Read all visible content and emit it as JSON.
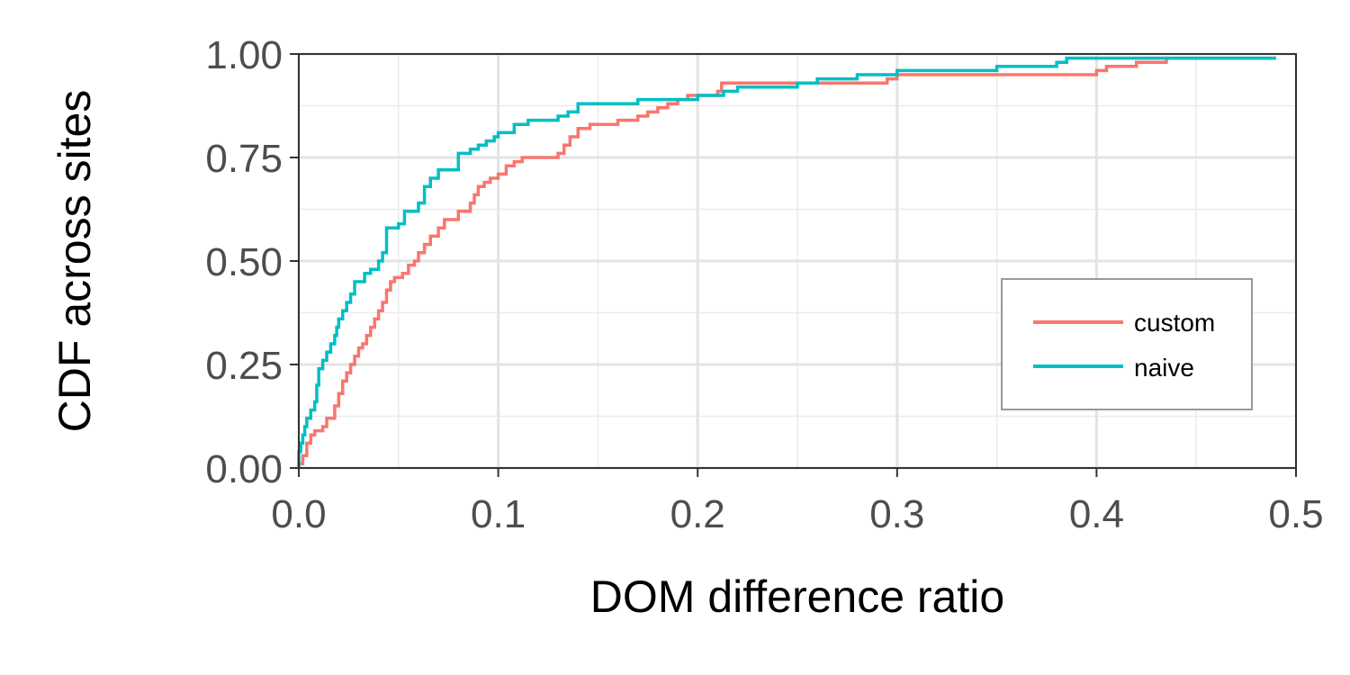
{
  "chart_data": {
    "type": "line",
    "step": true,
    "title": "",
    "xlabel": "DOM difference ratio",
    "ylabel": "CDF across sites",
    "xlim": [
      0,
      0.5
    ],
    "ylim": [
      0,
      1
    ],
    "xticks": [
      "0.0",
      "0.1",
      "0.2",
      "0.3",
      "0.4",
      "0.5"
    ],
    "yticks": [
      "0.00",
      "0.25",
      "0.50",
      "0.75",
      "1.00"
    ],
    "grid": true,
    "legend_position": "right",
    "series": [
      {
        "name": "custom",
        "color": "#f8766d",
        "x": [
          0.0,
          0.002,
          0.004,
          0.006,
          0.008,
          0.012,
          0.014,
          0.018,
          0.02,
          0.022,
          0.024,
          0.026,
          0.028,
          0.03,
          0.032,
          0.034,
          0.036,
          0.038,
          0.04,
          0.042,
          0.044,
          0.046,
          0.048,
          0.05,
          0.052,
          0.055,
          0.058,
          0.06,
          0.063,
          0.066,
          0.07,
          0.073,
          0.076,
          0.08,
          0.084,
          0.086,
          0.088,
          0.09,
          0.093,
          0.096,
          0.1,
          0.104,
          0.108,
          0.112,
          0.114,
          0.118,
          0.12,
          0.13,
          0.133,
          0.136,
          0.14,
          0.142,
          0.146,
          0.15,
          0.155,
          0.16,
          0.17,
          0.175,
          0.18,
          0.185,
          0.19,
          0.195,
          0.2,
          0.205,
          0.21,
          0.212,
          0.23,
          0.24,
          0.25,
          0.26,
          0.27,
          0.29,
          0.295,
          0.3,
          0.36,
          0.4,
          0.405,
          0.42,
          0.43,
          0.435,
          0.49
        ],
        "y": [
          0.01,
          0.03,
          0.06,
          0.08,
          0.09,
          0.1,
          0.12,
          0.15,
          0.18,
          0.21,
          0.23,
          0.25,
          0.27,
          0.29,
          0.3,
          0.32,
          0.34,
          0.36,
          0.38,
          0.4,
          0.43,
          0.45,
          0.46,
          0.46,
          0.47,
          0.49,
          0.5,
          0.52,
          0.54,
          0.56,
          0.58,
          0.6,
          0.6,
          0.62,
          0.62,
          0.64,
          0.66,
          0.68,
          0.69,
          0.7,
          0.71,
          0.73,
          0.74,
          0.75,
          0.75,
          0.75,
          0.75,
          0.76,
          0.78,
          0.8,
          0.82,
          0.82,
          0.83,
          0.83,
          0.83,
          0.84,
          0.85,
          0.86,
          0.87,
          0.88,
          0.89,
          0.9,
          0.9,
          0.9,
          0.91,
          0.93,
          0.93,
          0.93,
          0.93,
          0.93,
          0.93,
          0.93,
          0.94,
          0.95,
          0.95,
          0.96,
          0.97,
          0.98,
          0.98,
          0.99,
          0.99
        ]
      },
      {
        "name": "naive",
        "color": "#00bfc4",
        "x": [
          0.0,
          0.001,
          0.002,
          0.003,
          0.004,
          0.006,
          0.008,
          0.009,
          0.01,
          0.012,
          0.014,
          0.016,
          0.018,
          0.019,
          0.02,
          0.022,
          0.024,
          0.026,
          0.028,
          0.03,
          0.033,
          0.036,
          0.04,
          0.042,
          0.044,
          0.046,
          0.05,
          0.053,
          0.056,
          0.06,
          0.063,
          0.066,
          0.07,
          0.075,
          0.08,
          0.083,
          0.086,
          0.09,
          0.094,
          0.098,
          0.1,
          0.103,
          0.108,
          0.115,
          0.12,
          0.13,
          0.135,
          0.14,
          0.145,
          0.17,
          0.2,
          0.21,
          0.213,
          0.22,
          0.25,
          0.26,
          0.28,
          0.3,
          0.32,
          0.35,
          0.37,
          0.38,
          0.385,
          0.4,
          0.43,
          0.49
        ],
        "y": [
          0.04,
          0.06,
          0.08,
          0.1,
          0.12,
          0.14,
          0.16,
          0.2,
          0.24,
          0.26,
          0.28,
          0.3,
          0.32,
          0.34,
          0.36,
          0.38,
          0.4,
          0.42,
          0.45,
          0.45,
          0.47,
          0.48,
          0.5,
          0.52,
          0.58,
          0.58,
          0.59,
          0.62,
          0.62,
          0.64,
          0.68,
          0.7,
          0.72,
          0.72,
          0.76,
          0.76,
          0.77,
          0.78,
          0.79,
          0.8,
          0.81,
          0.81,
          0.83,
          0.84,
          0.84,
          0.85,
          0.86,
          0.88,
          0.88,
          0.89,
          0.9,
          0.9,
          0.91,
          0.92,
          0.93,
          0.94,
          0.95,
          0.96,
          0.96,
          0.97,
          0.97,
          0.98,
          0.99,
          0.99,
          0.99,
          0.99
        ]
      }
    ]
  }
}
